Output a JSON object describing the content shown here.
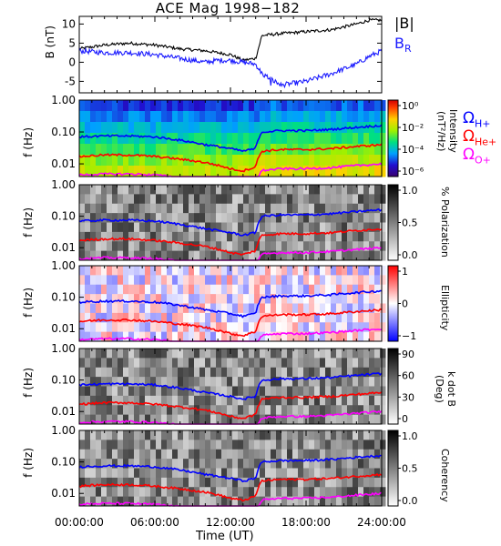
{
  "title": "ACE Mag 1998−182",
  "x_axis": {
    "label": "Time (UT)",
    "ticks": [
      "00:00:00",
      "06:00:00",
      "12:00:00",
      "18:00:00",
      "24:00:00"
    ]
  },
  "panel1": {
    "ylabel_top": "B",
    "ylabel_unit": "(nT)",
    "legend_b": "|B|",
    "legend_br": "B",
    "legend_br_sub": "R",
    "colors": {
      "b": "#000000",
      "br": "#1a1aff"
    }
  },
  "freq_ylabel": {
    "top": "f",
    "unit": "(Hz)"
  },
  "freq_tick_labels": [
    "1.00",
    "0.10",
    "0.01"
  ],
  "gyro_legend": [
    {
      "omega": "Ω",
      "sub": "H+",
      "color": "#0000ff"
    },
    {
      "omega": "Ω",
      "sub": "He+",
      "color": "#ff0000"
    },
    {
      "omega": "Ω",
      "sub": "O+",
      "color": "#ff00ff"
    }
  ],
  "colorbars": [
    {
      "label_1": "Intensity",
      "label_2": "(nT²/Hz)",
      "ticks": [
        "10⁰",
        "10⁻²",
        "10⁻⁴",
        "10⁻⁶"
      ]
    },
    {
      "label_1": "% Polarization",
      "label_2": "",
      "ticks": [
        "1.0",
        "0.5",
        "0.0"
      ]
    },
    {
      "label_1": "Ellipticity",
      "label_2": "",
      "ticks": [
        "1",
        "0",
        "−1"
      ]
    },
    {
      "label_1": "k dot B",
      "label_2": "(Deg)",
      "ticks": [
        "90",
        "60",
        "30",
        "0"
      ]
    },
    {
      "label_1": "Coherency",
      "label_2": "",
      "ticks": [
        "1.0",
        "0.5",
        "0.0"
      ]
    }
  ],
  "chart_data": [
    {
      "type": "line",
      "title": "ACE Mag 1998−182",
      "xlabel": "Time (UT)",
      "ylabel": "B (nT)",
      "xlim_hours": [
        0,
        24
      ],
      "ylim": [
        -8,
        12
      ],
      "y_ticks": [
        10,
        5,
        0,
        -5
      ],
      "x": [
        0,
        2,
        4,
        6,
        8,
        10,
        11,
        12,
        13,
        14,
        14.5,
        16,
        18,
        20,
        22,
        23,
        24
      ],
      "series": [
        {
          "name": "|B|",
          "values": [
            3.5,
            4.5,
            5.0,
            4.5,
            3.5,
            3.0,
            2.5,
            2.0,
            0.5,
            1.0,
            7.0,
            7.5,
            8.0,
            8.5,
            10.0,
            11.0,
            11.0
          ]
        },
        {
          "name": "B_R",
          "values": [
            3.0,
            2.5,
            2.5,
            2.0,
            1.0,
            0.0,
            0.5,
            0.5,
            0.0,
            -0.5,
            -3.0,
            -6.0,
            -5.0,
            -3.0,
            -0.5,
            1.5,
            3.0
          ]
        }
      ]
    },
    {
      "type": "heatmap",
      "quantity": "Intensity (nT^2/Hz)",
      "xlabel": "Time (UT)",
      "ylabel": "f (Hz)",
      "y_scale": "log",
      "ylim": [
        0.004,
        1.0
      ],
      "color_range": [
        "1e-6",
        "1e0"
      ],
      "overlay_lines": {
        "x": [
          0,
          2,
          4,
          6,
          8,
          10,
          11,
          12,
          13,
          14,
          14.5,
          16,
          18,
          20,
          22,
          24
        ],
        "Omega_H+": [
          0.07,
          0.075,
          0.075,
          0.07,
          0.055,
          0.04,
          0.035,
          0.03,
          0.025,
          0.03,
          0.1,
          0.11,
          0.11,
          0.12,
          0.14,
          0.16
        ],
        "Omega_He+": [
          0.017,
          0.019,
          0.019,
          0.017,
          0.014,
          0.011,
          0.009,
          0.007,
          0.006,
          0.008,
          0.025,
          0.028,
          0.028,
          0.03,
          0.035,
          0.04
        ],
        "Omega_O+": [
          0.0045,
          0.0048,
          0.0048,
          0.0045,
          0.0037,
          0.003,
          0.0025,
          0.002,
          0.0018,
          0.002,
          0.0062,
          0.007,
          0.007,
          0.0076,
          0.0088,
          0.01
        ]
      }
    },
    {
      "type": "heatmap",
      "quantity": "% Polarization",
      "ylabel": "f (Hz)",
      "y_scale": "log",
      "color_range": [
        0.0,
        1.0
      ]
    },
    {
      "type": "heatmap",
      "quantity": "Ellipticity",
      "ylabel": "f (Hz)",
      "y_scale": "log",
      "color_range": [
        -1,
        1
      ]
    },
    {
      "type": "heatmap",
      "quantity": "k dot B (Deg)",
      "ylabel": "f (Hz)",
      "y_scale": "log",
      "color_range": [
        0,
        90
      ]
    },
    {
      "type": "heatmap",
      "quantity": "Coherency",
      "ylabel": "f (Hz)",
      "y_scale": "log",
      "color_range": [
        0.0,
        1.0
      ]
    }
  ]
}
